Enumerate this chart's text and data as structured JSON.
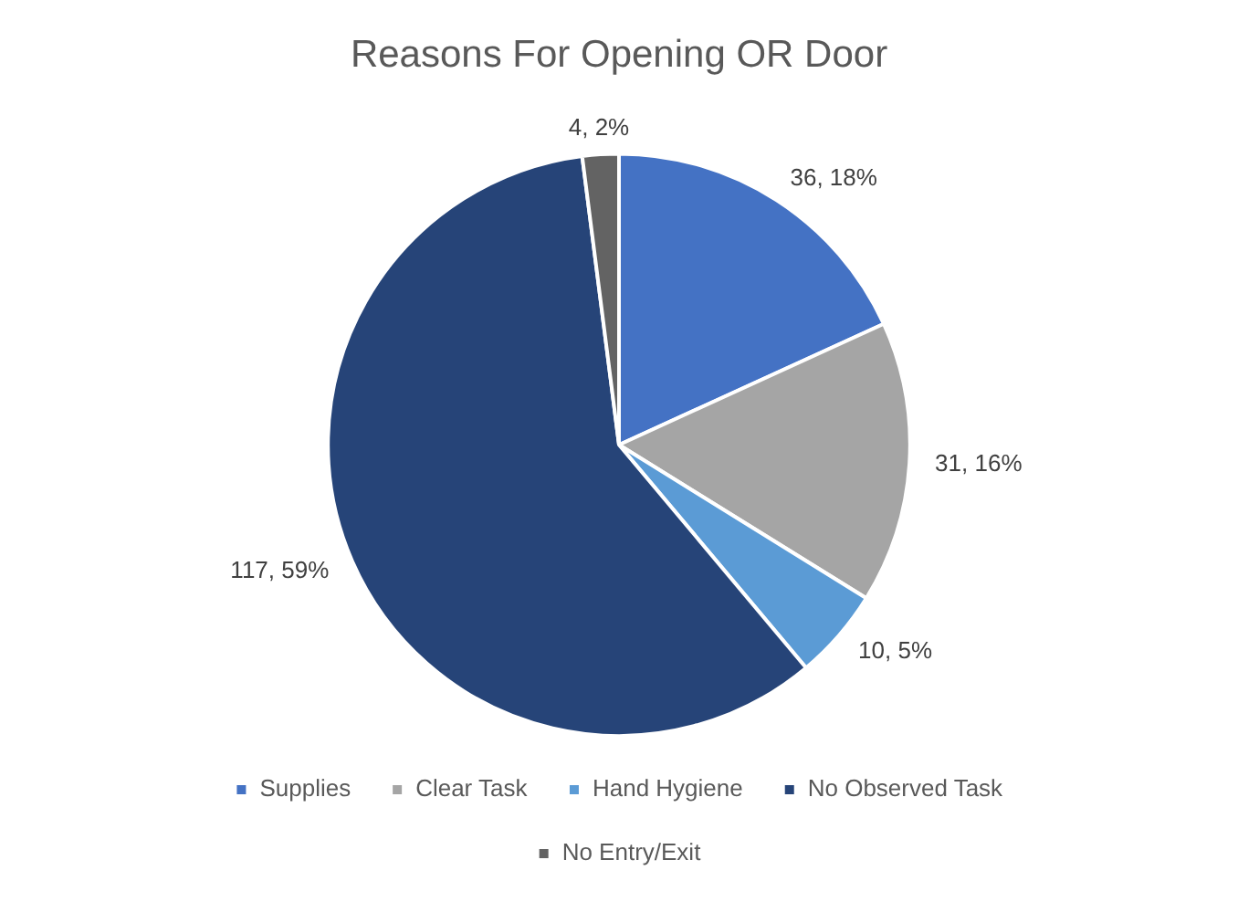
{
  "chart_data": {
    "type": "pie",
    "title": "Reasons For Opening OR Door",
    "categories": [
      "Supplies",
      "Clear Task",
      "Hand Hygiene",
      "No Observed Task",
      "No Entry/Exit"
    ],
    "values": [
      36,
      31,
      10,
      117,
      4
    ],
    "colors": [
      "#4472c4",
      "#a5a5a5",
      "#5b9bd5",
      "#264478",
      "#636363"
    ],
    "value_labels": [
      "36, 18%",
      "31, 16%",
      "10, 5%",
      "117, 59%",
      "4, 2%"
    ],
    "legend": "bottom"
  }
}
